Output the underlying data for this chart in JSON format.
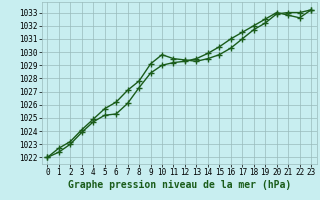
{
  "title": "Graphe pression niveau de la mer (hPa)",
  "bg_color": "#c8eef0",
  "grid_color": "#99bbbb",
  "line_color": "#1a5c1a",
  "xlim": [
    -0.5,
    23.5
  ],
  "ylim": [
    1021.5,
    1033.8
  ],
  "yticks": [
    1022,
    1023,
    1024,
    1025,
    1026,
    1027,
    1028,
    1029,
    1030,
    1031,
    1032,
    1033
  ],
  "xticks": [
    0,
    1,
    2,
    3,
    4,
    5,
    6,
    7,
    8,
    9,
    10,
    11,
    12,
    13,
    14,
    15,
    16,
    17,
    18,
    19,
    20,
    21,
    22,
    23
  ],
  "line1_x": [
    0,
    1,
    2,
    3,
    4,
    5,
    6,
    7,
    8,
    9,
    10,
    11,
    12,
    13,
    14,
    15,
    16,
    17,
    18,
    19,
    20,
    21,
    22,
    23
  ],
  "line1_y": [
    1022.0,
    1022.7,
    1023.2,
    1024.1,
    1024.9,
    1025.7,
    1026.2,
    1027.1,
    1027.8,
    1029.1,
    1029.8,
    1029.5,
    1029.4,
    1029.3,
    1029.5,
    1029.8,
    1030.3,
    1031.0,
    1031.7,
    1032.2,
    1032.9,
    1033.0,
    1033.0,
    1033.2
  ],
  "line2_x": [
    0,
    1,
    2,
    3,
    4,
    5,
    6,
    7,
    8,
    9,
    10,
    11,
    12,
    13,
    14,
    15,
    16,
    17,
    18,
    19,
    20,
    21,
    22,
    23
  ],
  "line2_y": [
    1022.0,
    1022.4,
    1023.0,
    1023.9,
    1024.7,
    1025.2,
    1025.3,
    1026.1,
    1027.3,
    1028.4,
    1029.0,
    1029.2,
    1029.3,
    1029.5,
    1029.9,
    1030.4,
    1031.0,
    1031.5,
    1032.0,
    1032.5,
    1033.0,
    1032.8,
    1032.6,
    1033.2
  ],
  "marker": "+",
  "markersize": 4,
  "linewidth": 1.0,
  "title_fontsize": 7,
  "tick_fontsize": 5.5
}
